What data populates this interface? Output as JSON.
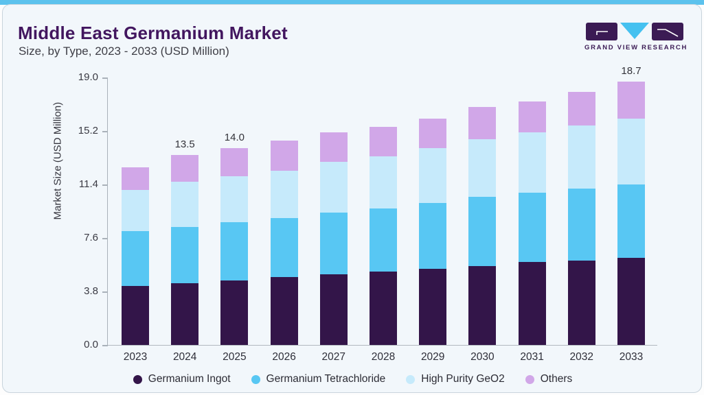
{
  "header": {
    "title": "Middle East Germanium Market",
    "subtitle": "Size, by Type, 2023 - 2033 (USD Million)",
    "brand": "GRAND VIEW RESEARCH"
  },
  "colors": {
    "accent_bar": "#5cc2ed",
    "card_bg": "#f2f7fb",
    "title_text": "#42165f",
    "logo_dark": "#3b1b54",
    "logo_blue": "#45c1f0",
    "axis_line": "#a9b1b9",
    "tick_text": "#3a3a43",
    "label_text": "#33333a"
  },
  "chart_data": {
    "type": "bar",
    "stacked": true,
    "title": "Middle East Germanium Market Size, by Type, 2023 - 2033 (USD Million)",
    "ylabel": "Market Size (USD Million)",
    "xlabel": "",
    "ylim": [
      0,
      19.0
    ],
    "yticks": [
      0.0,
      3.8,
      7.6,
      11.4,
      15.2,
      19.0
    ],
    "grid": false,
    "legend_position": "bottom",
    "categories": [
      "2023",
      "2024",
      "2025",
      "2026",
      "2027",
      "2028",
      "2029",
      "2030",
      "2031",
      "2032",
      "2033"
    ],
    "series": [
      {
        "name": "Germanium Ingot",
        "color": "#331549",
        "values": [
          4.2,
          4.4,
          4.6,
          4.8,
          5.0,
          5.2,
          5.4,
          5.6,
          5.9,
          6.0,
          6.2
        ]
      },
      {
        "name": "Germanium Tetrachloride",
        "color": "#58c7f3",
        "values": [
          3.9,
          4.0,
          4.1,
          4.2,
          4.4,
          4.5,
          4.7,
          4.9,
          4.9,
          5.1,
          5.2
        ]
      },
      {
        "name": "High Purity GeO2",
        "color": "#c6eafb",
        "values": [
          2.9,
          3.2,
          3.3,
          3.4,
          3.6,
          3.7,
          3.9,
          4.1,
          4.3,
          4.5,
          4.7
        ]
      },
      {
        "name": "Others",
        "color": "#d1a7e8",
        "values": [
          1.6,
          1.9,
          2.0,
          2.1,
          2.1,
          2.1,
          2.1,
          2.3,
          2.2,
          2.4,
          2.6
        ]
      }
    ],
    "bar_labels": [
      "",
      "13.5",
      "14.0",
      "",
      "",
      "",
      "",
      "",
      "",
      "",
      "18.7"
    ]
  }
}
